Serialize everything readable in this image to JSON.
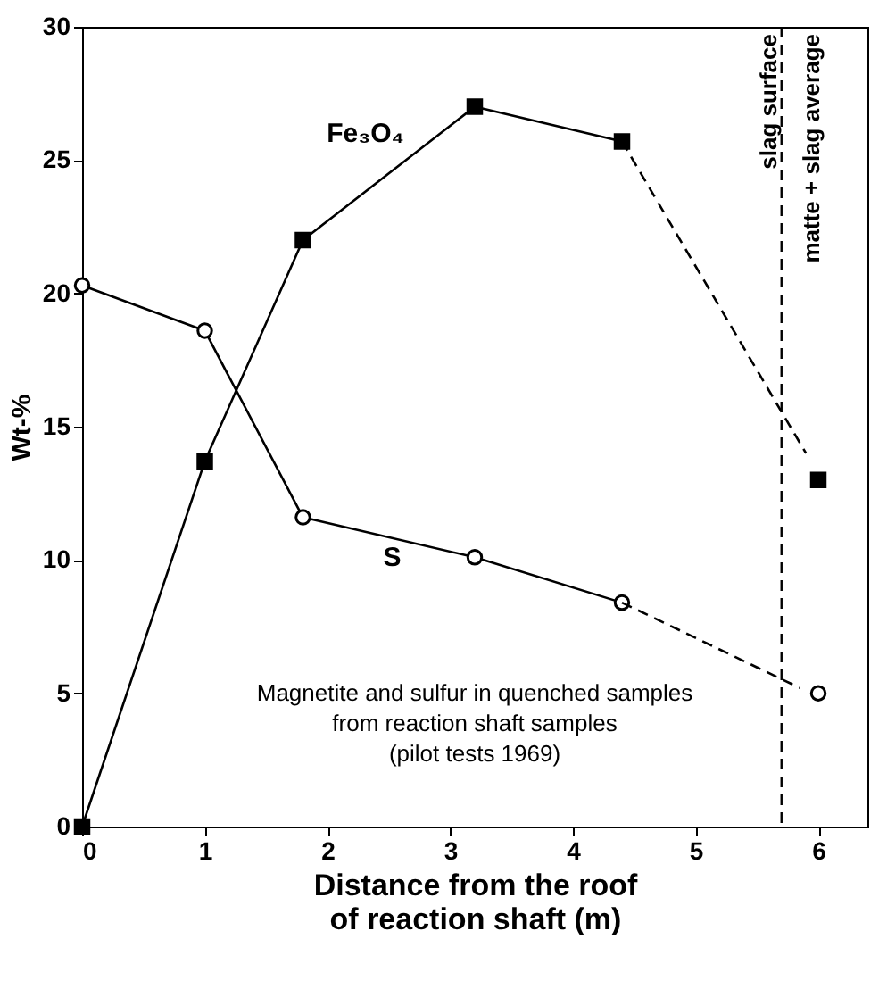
{
  "chart_data": {
    "type": "line",
    "xlabel": "Distance from the roof\nof reaction shaft (m)",
    "ylabel": "Wt-%",
    "xlim": [
      0,
      6.4
    ],
    "ylim": [
      0,
      30
    ],
    "xticks": [
      0,
      1,
      2,
      3,
      4,
      5,
      6
    ],
    "yticks": [
      0,
      5,
      10,
      15,
      20,
      25,
      30
    ],
    "grid": false,
    "series": [
      {
        "name": "Fe₃O₄",
        "color": "#000000",
        "marker": "square",
        "x": [
          0,
          1,
          1.8,
          3.2,
          4.4
        ],
        "values": [
          0,
          13.7,
          22,
          27,
          25.7
        ]
      },
      {
        "color": "#000000",
        "marker": "none",
        "line_style": "dashed",
        "x": [
          4.4,
          5.9
        ],
        "values": [
          25.7,
          14
        ]
      },
      {
        "color": "#000000",
        "marker": "square",
        "x": [
          6
        ],
        "values": [
          13
        ]
      },
      {
        "name": "S",
        "color": "#000000",
        "marker": "circle",
        "x": [
          0,
          1,
          1.8,
          3.2,
          4.4
        ],
        "values": [
          20.3,
          18.6,
          11.6,
          10.1,
          8.4
        ]
      },
      {
        "color": "#000000",
        "marker": "none",
        "line_style": "dashed",
        "x": [
          4.4,
          5.85
        ],
        "values": [
          8.4,
          5.2
        ]
      },
      {
        "color": "#000000",
        "marker": "circle",
        "x": [
          6
        ],
        "values": [
          5
        ]
      }
    ],
    "ref_lines": [
      {
        "axis": "x",
        "value": 5.7,
        "label": "slag surface",
        "line_style": "dashed"
      }
    ],
    "annotations": [
      "matte + slag average",
      "Magnetite and sulfur in quenched samples\nfrom reaction shaft samples\n(pilot tests 1969)"
    ]
  }
}
